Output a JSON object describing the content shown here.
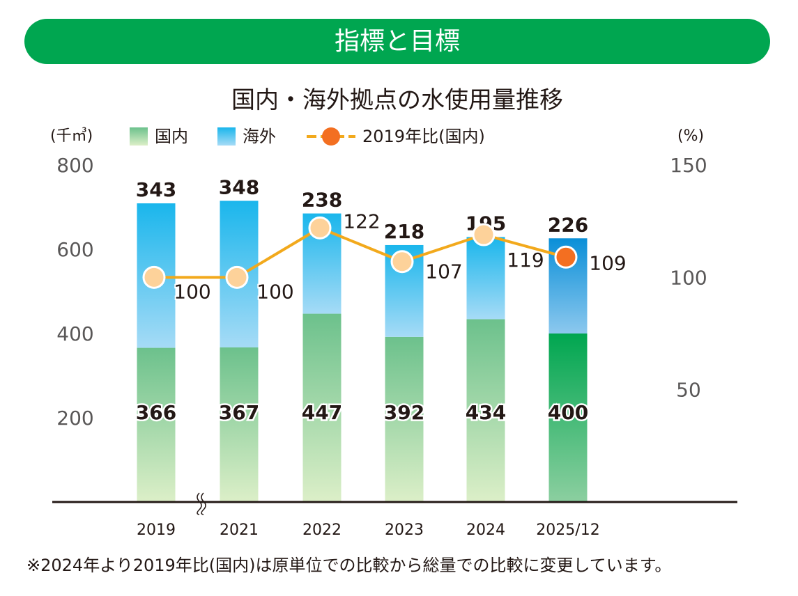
{
  "header": {
    "title": "指標と目標"
  },
  "footnote": "※2024年より2019年比(国内)は原単位での比較から総量での比較に変更しています。",
  "colors": {
    "header_bg": "#00a650",
    "domestic_top": "#6cc18c",
    "domestic_bottom": "#dcefc8",
    "domestic_highlight": "#00a650",
    "overseas_top": "#1ab6ec",
    "overseas_bottom": "#a6dbf6",
    "overseas_highlight": "#0a8fd8",
    "line": "#f2a91c",
    "marker": "#fdd29a",
    "marker_highlight": "#f36f21",
    "axis": "#231815"
  },
  "chart_data": {
    "type": "bar",
    "stacked": true,
    "title": "国内・海外拠点の水使用量推移",
    "left_axis_unit": "(千㎥)",
    "right_axis_unit": "(%)",
    "categories": [
      "2019",
      "2021",
      "2022",
      "2023",
      "2024",
      "2025/12"
    ],
    "series": [
      {
        "name": "国内",
        "type": "bar",
        "axis": "left",
        "values": [
          366,
          367,
          447,
          392,
          434,
          400
        ]
      },
      {
        "name": "海外",
        "type": "bar",
        "axis": "left",
        "values": [
          343,
          348,
          238,
          218,
          195,
          226
        ]
      },
      {
        "name": "2019年比(国内)",
        "type": "line",
        "axis": "right",
        "values": [
          100,
          100,
          122,
          107,
          119,
          109
        ]
      }
    ],
    "left_ylim": [
      0,
      800
    ],
    "left_ticks": [
      "200",
      "400",
      "600",
      "800"
    ],
    "right_ylim": [
      0,
      150
    ],
    "right_ticks": [
      "50",
      "100",
      "150"
    ],
    "axis_break_after": "2019",
    "highlight_category": "2025/12",
    "grid": false,
    "legend_position": "top"
  }
}
